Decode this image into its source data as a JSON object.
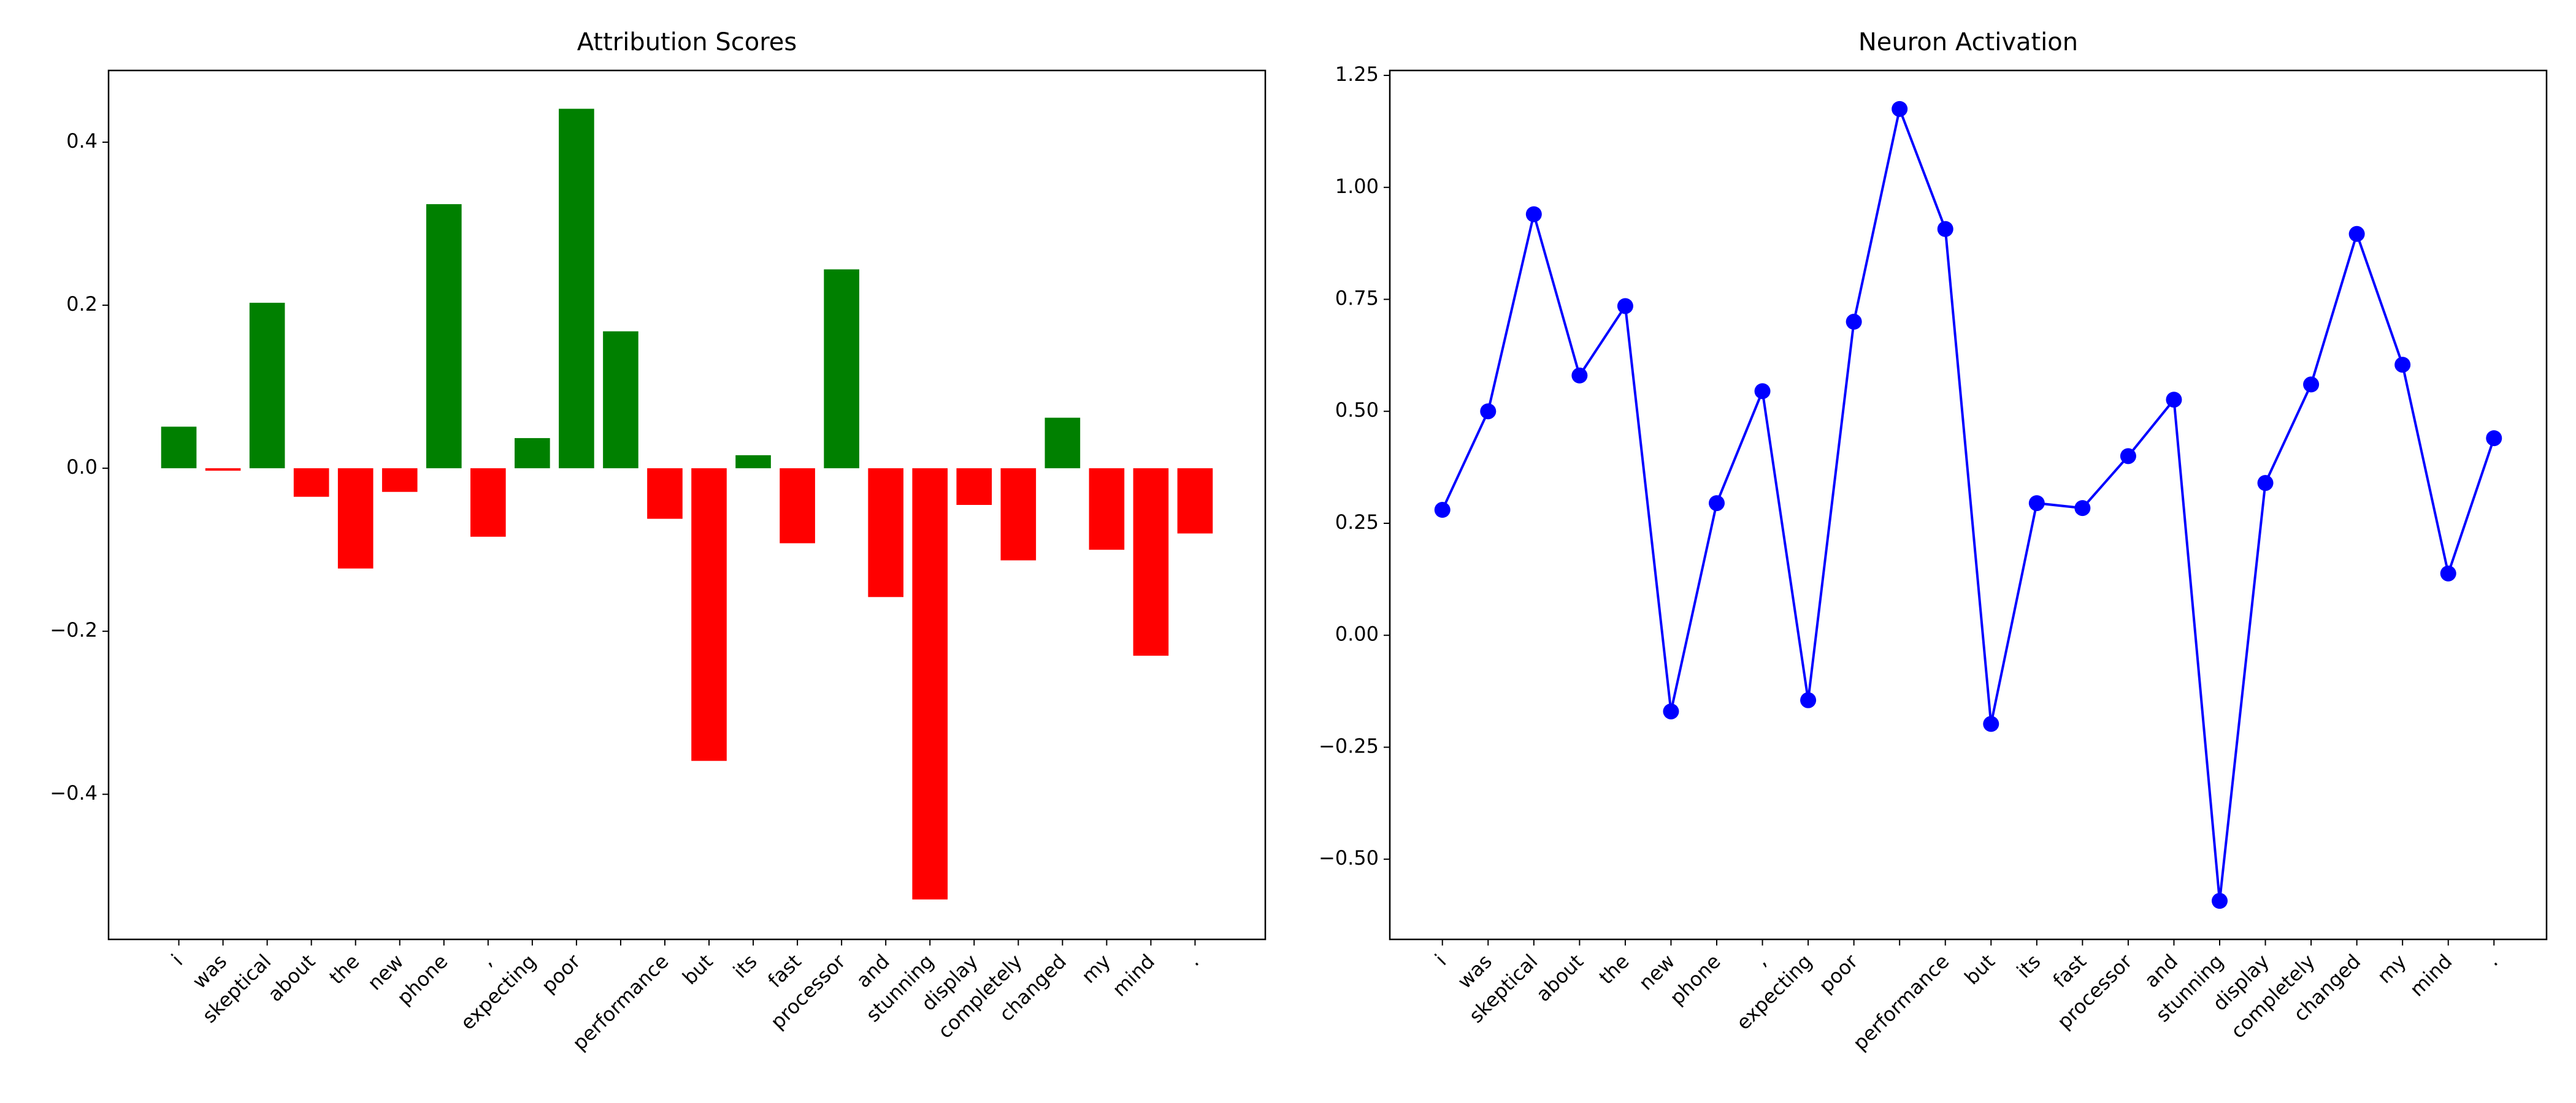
{
  "chart_data": [
    {
      "type": "bar",
      "title": "Attribution Scores",
      "categories": [
        "i",
        "was",
        "skeptical",
        "about",
        "the",
        "new",
        "phone",
        ",",
        "expecting",
        "poor",
        null,
        "performance",
        "but",
        "its",
        "fast",
        "processor",
        "and",
        "stunning",
        "display",
        "completely",
        "changed",
        "my",
        "mind",
        "."
      ],
      "values": [
        0.051,
        -0.003,
        0.203,
        -0.035,
        -0.123,
        -0.029,
        0.324,
        -0.084,
        0.037,
        0.441,
        0.168,
        -0.062,
        -0.359,
        0.016,
        -0.092,
        0.244,
        -0.158,
        -0.529,
        -0.045,
        -0.113,
        0.062,
        -0.1,
        -0.23,
        -0.08
      ],
      "colors": [
        "#008000",
        "#ff0000",
        "#008000",
        "#ff0000",
        "#ff0000",
        "#ff0000",
        "#008000",
        "#ff0000",
        "#008000",
        "#008000",
        "#008000",
        "#ff0000",
        "#ff0000",
        "#008000",
        "#ff0000",
        "#008000",
        "#ff0000",
        "#ff0000",
        "#ff0000",
        "#ff0000",
        "#008000",
        "#ff0000",
        "#ff0000",
        "#ff0000"
      ],
      "ylim": [
        -0.578,
        0.488
      ],
      "yticks": [
        {
          "value": -0.4,
          "label": "−0.4"
        },
        {
          "value": -0.2,
          "label": "−0.2"
        },
        {
          "value": 0,
          "label": "0.0"
        },
        {
          "value": 0.2,
          "label": "0.2"
        },
        {
          "value": 0.4,
          "label": "0.4"
        }
      ]
    },
    {
      "type": "line",
      "title": "Neuron Activation",
      "categories": [
        "i",
        "was",
        "skeptical",
        "about",
        "the",
        "new",
        "phone",
        ",",
        "expecting",
        "poor",
        null,
        "performance",
        "but",
        "its",
        "fast",
        "processor",
        "and",
        "stunning",
        "display",
        "completely",
        "changed",
        "my",
        "mind",
        "."
      ],
      "values": [
        0.28,
        0.5,
        0.94,
        0.58,
        0.735,
        -0.17,
        0.295,
        0.545,
        -0.145,
        0.7,
        1.175,
        0.907,
        -0.198,
        0.295,
        0.284,
        0.4,
        0.526,
        -0.593,
        0.34,
        0.56,
        0.896,
        0.604,
        0.138,
        0.44
      ],
      "color": "#0000ff",
      "ylim": [
        -0.679,
        1.261
      ],
      "yticks": [
        {
          "value": -0.5,
          "label": "−0.50"
        },
        {
          "value": -0.25,
          "label": "−0.25"
        },
        {
          "value": 0,
          "label": "0.00"
        },
        {
          "value": 0.25,
          "label": "0.25"
        },
        {
          "value": 0.5,
          "label": "0.50"
        },
        {
          "value": 0.75,
          "label": "0.75"
        },
        {
          "value": 1,
          "label": "1.00"
        },
        {
          "value": 1.25,
          "label": "1.25"
        }
      ]
    }
  ]
}
